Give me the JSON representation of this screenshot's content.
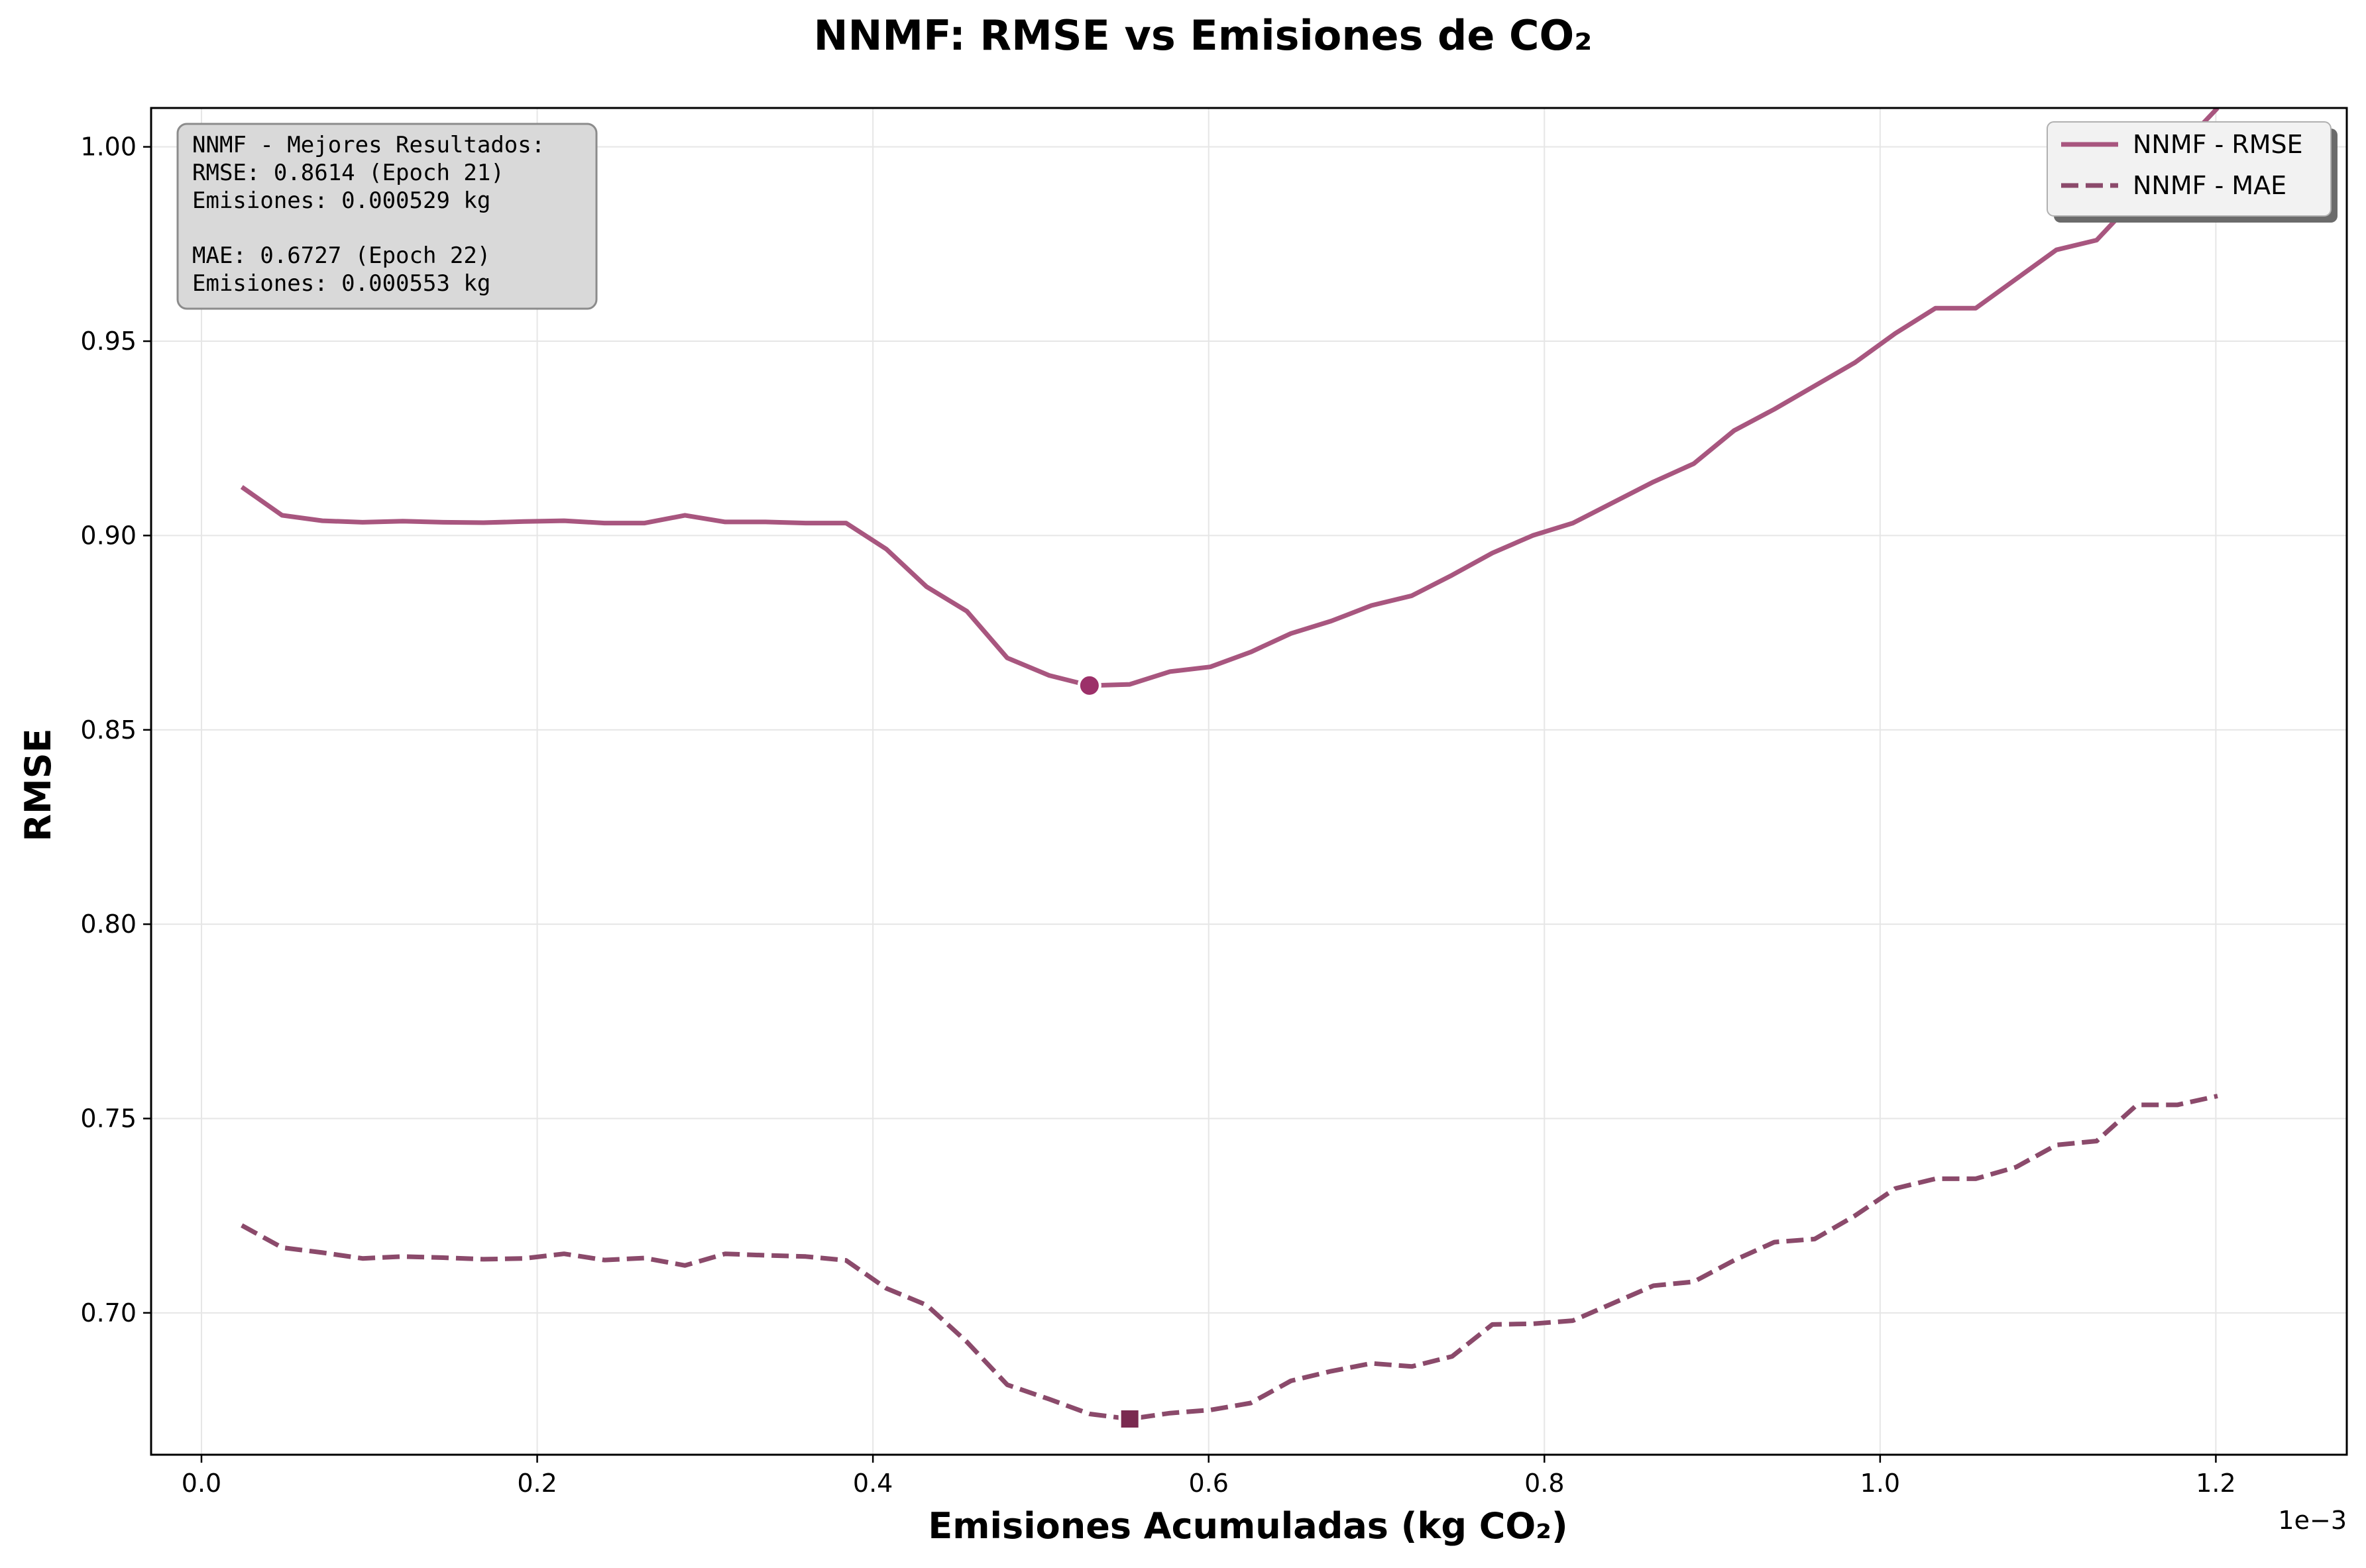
{
  "chart_data": {
    "type": "line",
    "title": "NNMF: RMSE vs Emisiones de CO₂",
    "xlabel": "Emisiones Acumuladas (kg CO₂)",
    "ylabel": "RMSE",
    "x_offset_text": "1e−3",
    "xlim": [
      -3e-05,
      0.001278
    ],
    "ylim": [
      0.6635,
      1.01
    ],
    "grid": true,
    "legend_position": "top-right",
    "x_ticks": [
      0.0,
      0.0002,
      0.0004,
      0.0006,
      0.0008,
      0.001,
      0.0012
    ],
    "x_tick_labels": [
      "0.0",
      "0.2",
      "0.4",
      "0.6",
      "0.8",
      "1.0",
      "1.2"
    ],
    "y_ticks": [
      0.7,
      0.75,
      0.8,
      0.85,
      0.9,
      0.95,
      1.0
    ],
    "y_tick_labels": [
      "0.70",
      "0.75",
      "0.80",
      "0.85",
      "0.90",
      "0.95",
      "1.00"
    ],
    "x": [
      2.4e-05,
      4.8e-05,
      7.2e-05,
      9.6e-05,
      0.00012,
      0.000144,
      0.000168,
      0.000192,
      0.000216,
      0.00024,
      0.000264,
      0.000288,
      0.000312,
      0.000336,
      0.00036,
      0.000384,
      0.000408,
      0.000432,
      0.000456,
      0.00048,
      0.000505,
      0.000529,
      0.000553,
      0.000577,
      0.000601,
      0.000625,
      0.000649,
      0.000673,
      0.000697,
      0.000721,
      0.000745,
      0.000769,
      0.000793,
      0.000817,
      0.000841,
      0.000865,
      0.000889,
      0.000913,
      0.000937,
      0.000961,
      0.000985,
      0.001009,
      0.001033,
      0.001057,
      0.001081,
      0.001105,
      0.001129,
      0.001153,
      0.001177,
      0.001201
    ],
    "series": [
      {
        "name": "NNMF - RMSE",
        "style": "solid",
        "color": "#a8567f",
        "values": [
          0.9125,
          0.9052,
          0.9038,
          0.9034,
          0.9037,
          0.9034,
          0.9033,
          0.9036,
          0.9038,
          0.9032,
          0.9032,
          0.9052,
          0.9035,
          0.9035,
          0.9032,
          0.9032,
          0.8965,
          0.8868,
          0.8805,
          0.8685,
          0.864,
          0.8614,
          0.8617,
          0.865,
          0.8662,
          0.87,
          0.8748,
          0.878,
          0.882,
          0.8845,
          0.8898,
          0.8955,
          0.9,
          0.9032,
          0.9085,
          0.9138,
          0.9185,
          0.927,
          0.9325,
          0.9385,
          0.9445,
          0.952,
          0.9585,
          0.9585,
          0.966,
          0.9735,
          0.976,
          0.987,
          0.999,
          1.01
        ]
      },
      {
        "name": "NNMF - MAE",
        "style": "dashed",
        "color": "#8b4a6b",
        "values": [
          0.7225,
          0.7168,
          0.7155,
          0.714,
          0.7145,
          0.7142,
          0.7138,
          0.714,
          0.7152,
          0.7136,
          0.7141,
          0.7122,
          0.7152,
          0.7148,
          0.7145,
          0.7135,
          0.7063,
          0.702,
          0.6925,
          0.6815,
          0.6778,
          0.674,
          0.6727,
          0.6742,
          0.675,
          0.6768,
          0.6825,
          0.685,
          0.687,
          0.6862,
          0.6888,
          0.697,
          0.6972,
          0.698,
          0.7025,
          0.707,
          0.708,
          0.7135,
          0.7182,
          0.719,
          0.725,
          0.732,
          0.7345,
          0.7345,
          0.7375,
          0.7432,
          0.7442,
          0.7535,
          0.7535,
          0.7558
        ]
      }
    ],
    "markers": [
      {
        "series": "NNMF - RMSE",
        "shape": "circle",
        "x": 0.000529,
        "y": 0.8614,
        "color": "#9c3069"
      },
      {
        "series": "NNMF - MAE",
        "shape": "square",
        "x": 0.000553,
        "y": 0.6727,
        "color": "#7a2a50"
      }
    ],
    "annotation": {
      "lines": [
        "NNMF - Mejores Resultados:",
        "RMSE: 0.8614 (Epoch 21)",
        "Emisiones: 0.000529 kg",
        "",
        "MAE: 0.6727 (Epoch 22)",
        "Emisiones: 0.000553 kg"
      ],
      "background": "#d9d9d9",
      "position": "top-left"
    },
    "legend": [
      {
        "label": "NNMF - RMSE",
        "style": "solid",
        "color": "#a8567f"
      },
      {
        "label": "NNMF - MAE",
        "style": "dashed",
        "color": "#8b4a6b"
      }
    ]
  }
}
